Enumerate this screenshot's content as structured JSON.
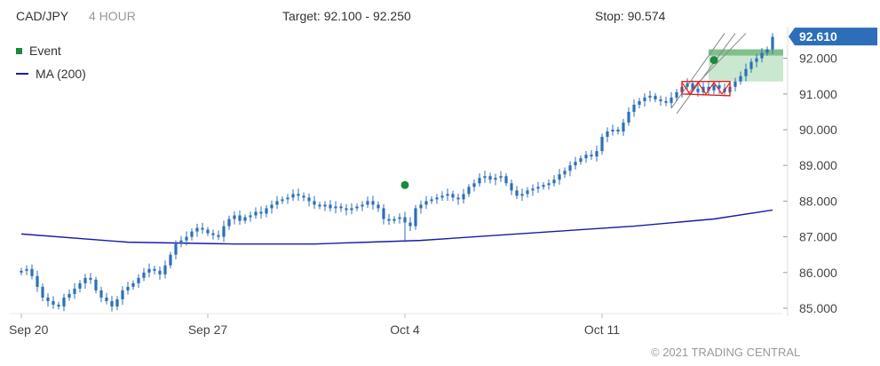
{
  "header": {
    "symbol": "CAD/JPY",
    "period": "4 HOUR",
    "target": "Target: 92.100 - 92.250",
    "stop": "Stop: 90.574"
  },
  "legend": {
    "event_label": "Event",
    "ma_label": "MA (200)"
  },
  "copyright": "© 2021 TRADING CENTRAL",
  "colors": {
    "candle": "#2c6fb8",
    "ma": "#1a1aa8",
    "event": "#1a8a3c",
    "target_zone": "#c9e8cf",
    "target_band": "#7fbf8c",
    "pattern": "#e02020",
    "channel": "#888888",
    "price_tag": "#2c6fb8"
  },
  "chart_data": {
    "type": "candlestick",
    "x_labels": [
      "Sep 20",
      "Sep 27",
      "Oct 4",
      "Oct 11"
    ],
    "x_label_index": [
      0,
      35,
      72,
      109
    ],
    "y_ticks": [
      "85.000",
      "86.000",
      "87.000",
      "88.000",
      "89.000",
      "90.000",
      "91.000",
      "92.000"
    ],
    "y_tick_values": [
      85,
      86,
      87,
      88,
      89,
      90,
      91,
      92
    ],
    "ylim": [
      84.8,
      93.05
    ],
    "x_count": 142,
    "current_price": "92.610",
    "current_price_value": 92.61,
    "target_range": [
      92.1,
      92.25
    ],
    "target_zone": {
      "start_index": 129,
      "end_index": 140,
      "low": 91.35,
      "high": 92.25
    },
    "events": [
      {
        "index": 72,
        "value": 88.45
      },
      {
        "index": 130,
        "value": 91.95
      }
    ],
    "closes": [
      86.05,
      86.1,
      85.9,
      85.6,
      85.3,
      85.2,
      85.1,
      85.05,
      85.3,
      85.4,
      85.55,
      85.7,
      85.85,
      85.8,
      85.5,
      85.3,
      85.2,
      85.05,
      85.25,
      85.5,
      85.6,
      85.7,
      85.85,
      86.0,
      86.1,
      86.05,
      85.95,
      86.2,
      86.5,
      86.8,
      86.9,
      87.0,
      87.15,
      87.25,
      87.2,
      87.1,
      87.05,
      87.0,
      87.3,
      87.5,
      87.6,
      87.45,
      87.55,
      87.6,
      87.7,
      87.65,
      87.8,
      87.9,
      88.0,
      88.05,
      88.1,
      88.2,
      88.15,
      88.1,
      88.0,
      87.9,
      87.85,
      87.9,
      87.8,
      87.85,
      87.8,
      87.75,
      87.8,
      87.85,
      87.9,
      88.0,
      87.9,
      87.8,
      87.5,
      87.45,
      87.5,
      87.55,
      87.4,
      87.3,
      87.8,
      87.9,
      88.0,
      88.05,
      88.1,
      88.15,
      88.2,
      88.1,
      88.05,
      88.2,
      88.4,
      88.5,
      88.65,
      88.7,
      88.6,
      88.65,
      88.7,
      88.5,
      88.3,
      88.15,
      88.2,
      88.3,
      88.35,
      88.4,
      88.45,
      88.5,
      88.6,
      88.75,
      88.85,
      89.0,
      89.1,
      89.2,
      89.3,
      89.25,
      89.4,
      89.8,
      89.95,
      90.0,
      89.95,
      90.2,
      90.5,
      90.7,
      90.8,
      90.9,
      90.95,
      90.85,
      90.8,
      90.75,
      90.9,
      91.05,
      91.2,
      91.3,
      91.15,
      91.05,
      91.2,
      91.1,
      91.25,
      91.15,
      91.05,
      91.2,
      91.35,
      91.5,
      91.7,
      91.9,
      92.0,
      92.15,
      92.25,
      92.6
    ],
    "ma_values": [
      87.08,
      86.85,
      86.8,
      86.8,
      86.85,
      86.9,
      87.0,
      87.15,
      87.3,
      87.5,
      87.75
    ],
    "ma_x_index": [
      0,
      20,
      40,
      55,
      65,
      75,
      85,
      100,
      115,
      130,
      141
    ]
  }
}
